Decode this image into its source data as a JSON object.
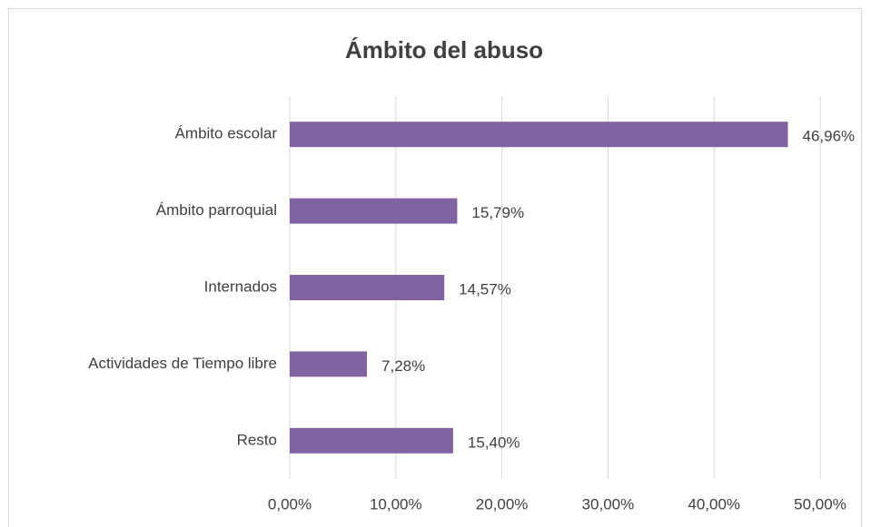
{
  "chart_data": {
    "type": "barh",
    "title": "Ámbito del abuso",
    "categories": [
      "Ámbito escolar",
      "Ámbito parroquial",
      "Internados",
      "Actividades de Tiempo libre",
      "Resto"
    ],
    "values": [
      46.96,
      15.79,
      14.57,
      7.28,
      15.4
    ],
    "value_labels": [
      "46,96%",
      "15,79%",
      "14,57%",
      "7,28%",
      "15,40%"
    ],
    "color": "#8064a2",
    "xlim": [
      0,
      50
    ],
    "xticks": [
      {
        "value": 0,
        "label": "0,00%"
      },
      {
        "value": 10,
        "label": "10,00%"
      },
      {
        "value": 20,
        "label": "20,00%"
      },
      {
        "value": 30,
        "label": "30,00%"
      },
      {
        "value": 40,
        "label": "40,00%"
      },
      {
        "value": 50,
        "label": "50,00%"
      }
    ],
    "grid": true
  }
}
